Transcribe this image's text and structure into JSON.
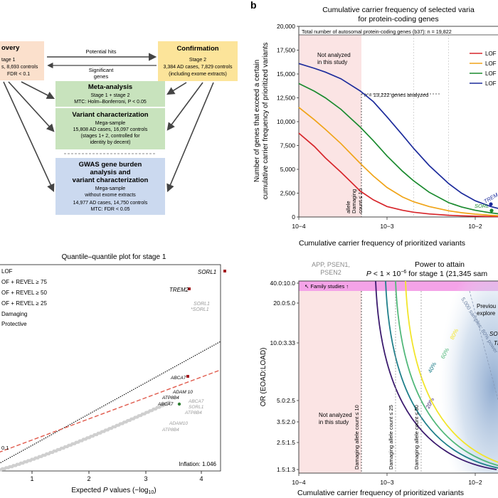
{
  "panel_b_label": "b",
  "flowchart": {
    "discovery": {
      "title": "overy",
      "line1": "tage 1",
      "line2": "s, 8,693 controls",
      "line3": "FDR < 0.1"
    },
    "potential_hits": "Potential hits",
    "significant_genes": "Significant\ngenes",
    "confirmation": {
      "title": "Confirmation",
      "line1": "Stage 2",
      "line2": "3,384 AD cases, 7,829 controls",
      "line3": "(including exome extracts)"
    },
    "meta": {
      "title": "Meta-analysis",
      "line1": "Stage 1 + stage 2",
      "line2": "MTC: Holm–Bonferroni, P < 0.05"
    },
    "variant": {
      "title": "Variant characterization",
      "line1": "Mega-sample",
      "line2": "15,808 AD cases, 16,097 controls",
      "line3": "(stages 1+ 2, controlled for",
      "line4": "identity by decent)"
    },
    "gwas": {
      "title1": "GWAS gene burden",
      "title2": "analysis and",
      "title3": "variant characterization",
      "line1": "Mega-sample",
      "line2": "without exome extracts",
      "line3": "14,977 AD cases, 14,750 controls",
      "line4": "MTC: FDR < 0.05"
    }
  },
  "qq": {
    "title": "Quantile–quantile plot for stage 1",
    "legend": [
      "LOF",
      "OF + REVEL ≥ 75",
      "OF + REVEL ≥ 50",
      "OF + REVEL ≥ 25",
      "Damaging",
      "Protective"
    ],
    "labels": {
      "sorl1": "SORL1",
      "trem2": "TREM2",
      "sorl1_g1": "SORL1",
      "sorl1_g2": "*SORL1",
      "abca7": "ABCA7",
      "adam10": "ADAM 10",
      "atp8b4": "ATP8B4",
      "abca7b": "ABCA7",
      "abca7g": "ABCA7",
      "sorl1_g3": "SORL1",
      "atp8b4_g": "ATP8B4",
      "adam10_g": "ADAM10",
      "atp8b4_g2": "ATP8B4",
      "fdr": "0.1"
    },
    "xlabel": "Expected P values (−log10)",
    "inflation": "Inflation: 1.046",
    "xticks": [
      "1",
      "2",
      "3",
      "4"
    ]
  },
  "chart_data": [
    {
      "type": "line",
      "title": "Cumulative carrier frequency of selected varia",
      "subtitle": "for protein-coding genes",
      "xlabel": "Cumulative carrier frequency of prioritized variants",
      "ylabel": "Number of genes that exceed a certain cumulative carrier frequency of prioritized variants",
      "xscale": "log",
      "xlim": [
        0.0001,
        0.03
      ],
      "ylim": [
        0,
        20000
      ],
      "yticks": [
        0,
        2500,
        5000,
        7500,
        10000,
        12500,
        15000,
        17500,
        20000
      ],
      "ytick_labels": [
        "0",
        "2,500",
        "5,000",
        "7,500",
        "10,000",
        "12,500",
        "15,000",
        "17,500",
        "20,000"
      ],
      "xtick_labels": [
        "10−4",
        "10−3",
        "10−2"
      ],
      "series": [
        {
          "name": "LOF",
          "color": "#d7262b",
          "x": [
            0.0001,
            0.00015,
            0.0002,
            0.0003,
            0.0005,
            0.0007,
            0.001,
            0.0015,
            0.002,
            0.003,
            0.005,
            0.007,
            0.01,
            0.015,
            0.02,
            0.03
          ],
          "y": [
            8800,
            7400,
            6200,
            4700,
            2700,
            1800,
            1100,
            700,
            500,
            320,
            180,
            120,
            80,
            50,
            35,
            20
          ]
        },
        {
          "name": "LOF",
          "color": "#f0a418",
          "x": [
            0.0001,
            0.00015,
            0.0002,
            0.0003,
            0.0005,
            0.0007,
            0.001,
            0.0015,
            0.002,
            0.003,
            0.005,
            0.007,
            0.01,
            0.015,
            0.02,
            0.03
          ],
          "y": [
            11500,
            10200,
            9200,
            7700,
            5600,
            4300,
            3100,
            2100,
            1600,
            1100,
            650,
            450,
            300,
            180,
            120,
            60
          ]
        },
        {
          "name": "LOF",
          "color": "#1a8a2e",
          "x": [
            0.0001,
            0.00015,
            0.0002,
            0.0003,
            0.0005,
            0.0007,
            0.001,
            0.0015,
            0.002,
            0.003,
            0.005,
            0.007,
            0.01,
            0.015,
            0.02,
            0.03
          ],
          "y": [
            14000,
            13200,
            12500,
            11300,
            9400,
            8000,
            6400,
            4800,
            3800,
            2600,
            1500,
            1050,
            700,
            430,
            300,
            150
          ]
        },
        {
          "name": "LOF",
          "color": "#1d2c9c",
          "x": [
            0.0001,
            0.00015,
            0.0002,
            0.0003,
            0.0005,
            0.0007,
            0.001,
            0.0015,
            0.002,
            0.003,
            0.005,
            0.007,
            0.01,
            0.015,
            0.02,
            0.03
          ],
          "y": [
            16100,
            15600,
            15200,
            14500,
            13200,
            12100,
            10500,
            8600,
            7200,
            5400,
            3500,
            2500,
            1700,
            1100,
            800,
            450
          ]
        }
      ],
      "annotations": [
        "Total number of autosomal protein-coding genes (b37): n = 19,822",
        "n = 13,222 genes analyzed",
        "Not analyzed in this study",
        "Damaging allele count ≤ 10",
        "TREM",
        "SORL"
      ]
    },
    {
      "type": "line",
      "title": "Power to attain",
      "subtitle": "P < 1 × 10−6 for stage 1 (21,345 sam",
      "xlabel": "Cumulative carrier frequency of prioritized variants",
      "ylabel": "OR (EOAD:LOAD)",
      "xscale": "log",
      "yscale": "log",
      "xlim": [
        0.0001,
        0.03
      ],
      "ylim": [
        1.5,
        40
      ],
      "ytick_labels": [
        "1.5:1.3",
        "2.5:1.5",
        "3.5:2.0",
        "5.0:2.5",
        "10.0:3.33",
        "20.0:5.0",
        "40.0:10.0"
      ],
      "xtick_labels": [
        "10−4",
        "10−3",
        "10−2"
      ],
      "series": [
        {
          "name": "20%",
          "color": "#3b1a6e"
        },
        {
          "name": "40%",
          "color": "#1f7f8a"
        },
        {
          "name": "60%",
          "color": "#52b87a"
        },
        {
          "name": "80%",
          "color": "#f2e52a"
        }
      ],
      "annotations": [
        "APP, PSEN1, PSEN2",
        "Family studies",
        "Not analyzed in this study",
        "Damaging allele count ≤ 10",
        "Damaging allele count ≤ 25",
        "Damaging allele count ≤ 50",
        "5,000 samples: 80% power",
        "Previou explore",
        "SO",
        "TI"
      ]
    }
  ]
}
